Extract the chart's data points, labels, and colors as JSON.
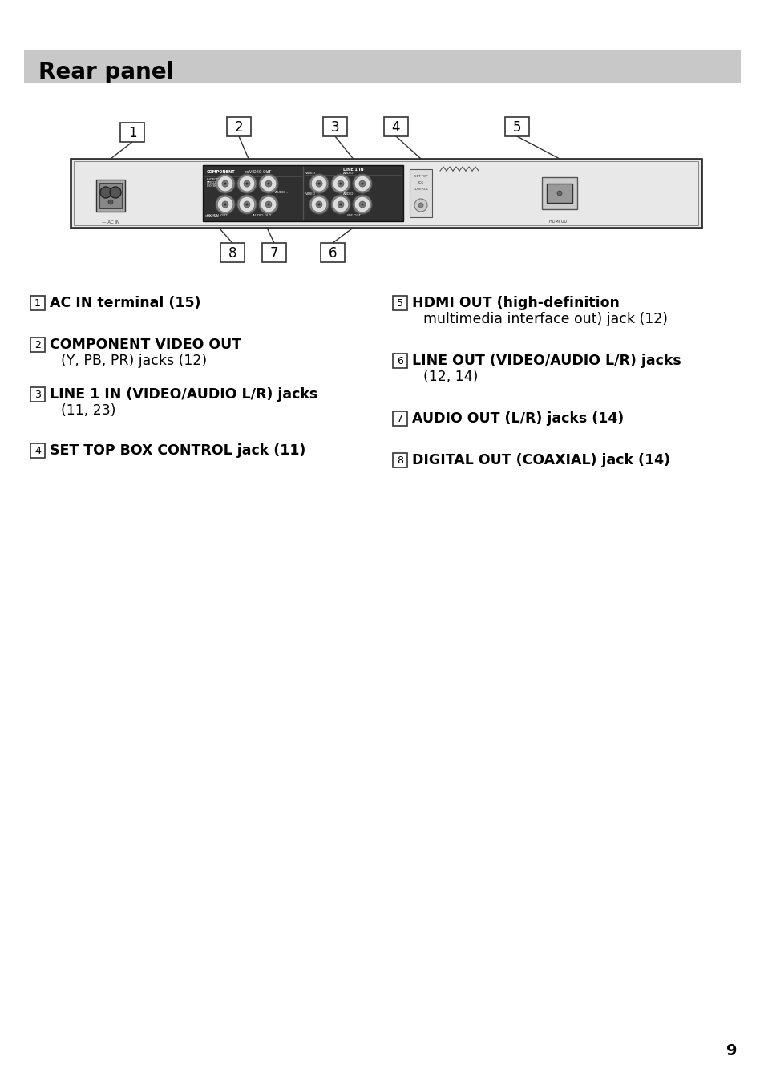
{
  "title": "Rear panel",
  "title_bg": "#c8c8c8",
  "title_color": "#000000",
  "title_fontsize": 20,
  "page_number": "9",
  "bg_color": "#ffffff",
  "items_left": [
    {
      "num": "1",
      "line1": "AC IN terminal (15)",
      "line2": "",
      "bold1": true,
      "bold2": false
    },
    {
      "num": "2",
      "line1": "COMPONENT VIDEO OUT",
      "line2": "(Y, PB, PR) jacks (12)",
      "bold1": true,
      "bold2": false
    },
    {
      "num": "3",
      "line1": "LINE 1 IN (VIDEO/AUDIO L/R) jacks",
      "line2": "(11, 23)",
      "bold1": true,
      "bold2": false
    },
    {
      "num": "4",
      "line1": "SET TOP BOX CONTROL jack (11)",
      "line2": "",
      "bold1": true,
      "bold2": false
    }
  ],
  "items_right": [
    {
      "num": "5",
      "line1": "HDMI OUT (high-definition",
      "line2": "multimedia interface out) jack (12)",
      "bold1": true,
      "bold2": false
    },
    {
      "num": "6",
      "line1": "LINE OUT (VIDEO/AUDIO L/R) jacks",
      "line2": "(12, 14)",
      "bold1": true,
      "bold2": false
    },
    {
      "num": "7",
      "line1": "AUDIO OUT (L/R) jacks (14)",
      "line2": "",
      "bold1": true,
      "bold2": false
    },
    {
      "num": "8",
      "line1": "DIGITAL OUT (COAXIAL) jack (14)",
      "line2": "",
      "bold1": true,
      "bold2": false
    }
  ]
}
